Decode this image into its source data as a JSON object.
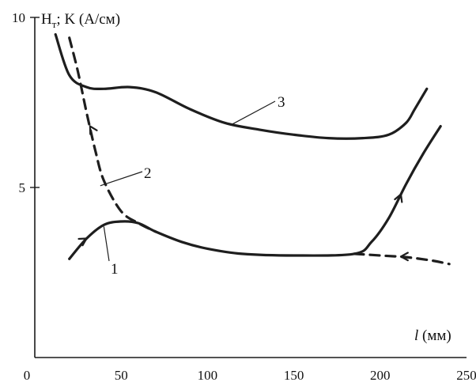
{
  "chart_data": {
    "type": "line",
    "title": "",
    "ylabel_parts": {
      "main": "H",
      "sub": "т",
      "rest": "; K (А/см)"
    },
    "xlabel_parts": {
      "var": "l",
      "unit": " (мм)"
    },
    "xlim": [
      0,
      250
    ],
    "ylim": [
      0,
      10
    ],
    "x_ticks": [
      0,
      50,
      100,
      150,
      200,
      250
    ],
    "y_ticks": [
      5,
      10
    ],
    "x_tick_labels": [
      "0",
      "50",
      "100",
      "150",
      "200",
      "250"
    ],
    "y_tick_labels": [
      "5",
      "10"
    ],
    "grid": false,
    "series": [
      {
        "name": "1",
        "style": "solid",
        "x": [
          20,
          30,
          40,
          50,
          60,
          70,
          85,
          100,
          120,
          150,
          185,
          195,
          205,
          215,
          225,
          235
        ],
        "y": [
          2.9,
          3.5,
          3.9,
          4.0,
          3.95,
          3.7,
          3.4,
          3.2,
          3.05,
          3.0,
          3.05,
          3.4,
          4.1,
          5.1,
          6.0,
          6.8
        ]
      },
      {
        "name": "2",
        "style": "dashed",
        "x": [
          20,
          25,
          30,
          35,
          40,
          50,
          60,
          70
        ],
        "y": [
          9.4,
          8.4,
          7.2,
          6.1,
          5.2,
          4.3,
          3.95,
          3.7
        ],
        "x_tail": [
          185,
          200,
          215,
          230,
          240
        ],
        "y_tail": [
          3.05,
          3.0,
          2.95,
          2.85,
          2.75
        ]
      },
      {
        "name": "3",
        "style": "solid",
        "x": [
          12,
          20,
          30,
          40,
          55,
          70,
          90,
          110,
          130,
          150,
          170,
          190,
          205,
          215,
          220,
          227
        ],
        "y": [
          9.5,
          8.3,
          7.95,
          7.9,
          7.95,
          7.8,
          7.3,
          6.9,
          6.7,
          6.55,
          6.45,
          6.45,
          6.55,
          6.9,
          7.3,
          7.9
        ]
      }
    ],
    "curve_labels": [
      "1",
      "2",
      "3"
    ]
  }
}
